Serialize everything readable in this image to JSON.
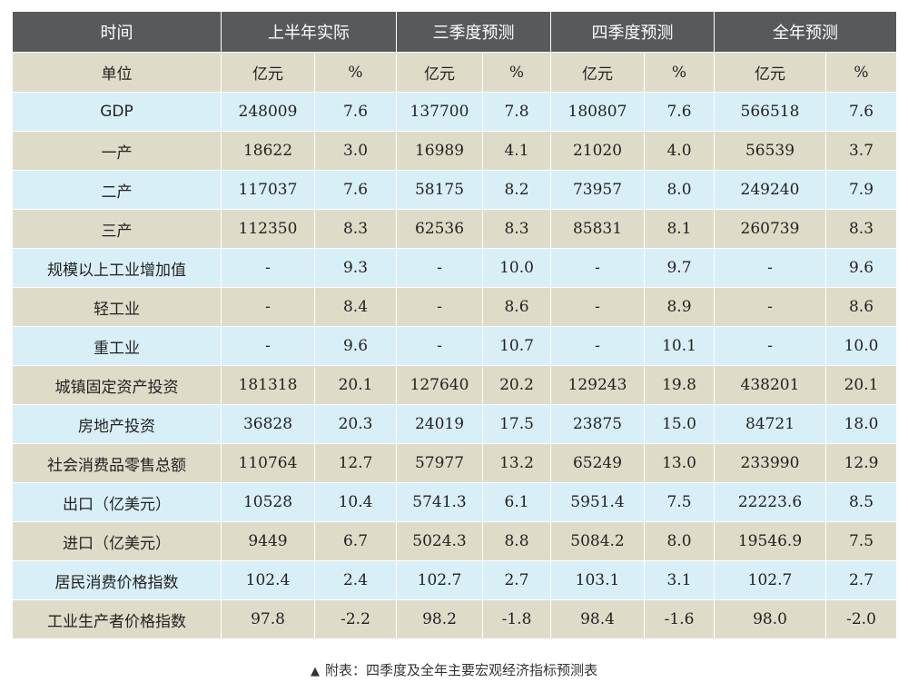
{
  "header": [
    "时间",
    "上半年实际",
    "三季度预测",
    "四季度预测",
    "全年预测"
  ],
  "units": [
    "单位",
    "亿元",
    "%",
    "亿元",
    "%",
    "亿元",
    "%",
    "亿元",
    "%"
  ],
  "rows": [
    [
      "GDP",
      "248009",
      "7.6",
      "137700",
      "7.8",
      "180807",
      "7.6",
      "566518",
      "7.6"
    ],
    [
      "一产",
      "18622",
      "3.0",
      "16989",
      "4.1",
      "21020",
      "4.0",
      "56539",
      "3.7"
    ],
    [
      "二产",
      "117037",
      "7.6",
      "58175",
      "8.2",
      "73957",
      "8.0",
      "249240",
      "7.9"
    ],
    [
      "三产",
      "112350",
      "8.3",
      "62536",
      "8.3",
      "85831",
      "8.1",
      "260739",
      "8.3"
    ],
    [
      "规模以上工业增加值",
      "-",
      "9.3",
      "-",
      "10.0",
      "-",
      "9.7",
      "-",
      "9.6"
    ],
    [
      "轻工业",
      "-",
      "8.4",
      "-",
      "8.6",
      "-",
      "8.9",
      "-",
      "8.6"
    ],
    [
      "重工业",
      "-",
      "9.6",
      "-",
      "10.7",
      "-",
      "10.1",
      "-",
      "10.0"
    ],
    [
      "城镇固定资产投资",
      "181318",
      "20.1",
      "127640",
      "20.2",
      "129243",
      "19.8",
      "438201",
      "20.1"
    ],
    [
      "房地产投资",
      "36828",
      "20.3",
      "24019",
      "17.5",
      "23875",
      "15.0",
      "84721",
      "18.0"
    ],
    [
      "社会消费品零售总额",
      "110764",
      "12.7",
      "57977",
      "13.2",
      "65249",
      "13.0",
      "233990",
      "12.9"
    ],
    [
      "出口（亿美元）",
      "10528",
      "10.4",
      "5741.3",
      "6.1",
      "5951.4",
      "7.5",
      "22223.6",
      "8.5"
    ],
    [
      "进口（亿美元）",
      "9449",
      "6.7",
      "5024.3",
      "8.8",
      "5084.2",
      "8.0",
      "19546.9",
      "7.5"
    ],
    [
      "居民消费价格指数",
      "102.4",
      "2.4",
      "102.7",
      "2.7",
      "103.1",
      "3.1",
      "102.7",
      "2.7"
    ],
    [
      "工业生产者价格指数",
      "97.8",
      "-2.2",
      "98.2",
      "-1.8",
      "98.4",
      "-1.6",
      "98.0",
      "-2.0"
    ]
  ],
  "caption": {
    "marker": "▲",
    "text": "附表：四季度及全年主要宏观经济指标预测表"
  },
  "colors": {
    "header_bg": "#58595b",
    "beige_row": "#dedcc8",
    "blue_row": "#d9eff8"
  }
}
